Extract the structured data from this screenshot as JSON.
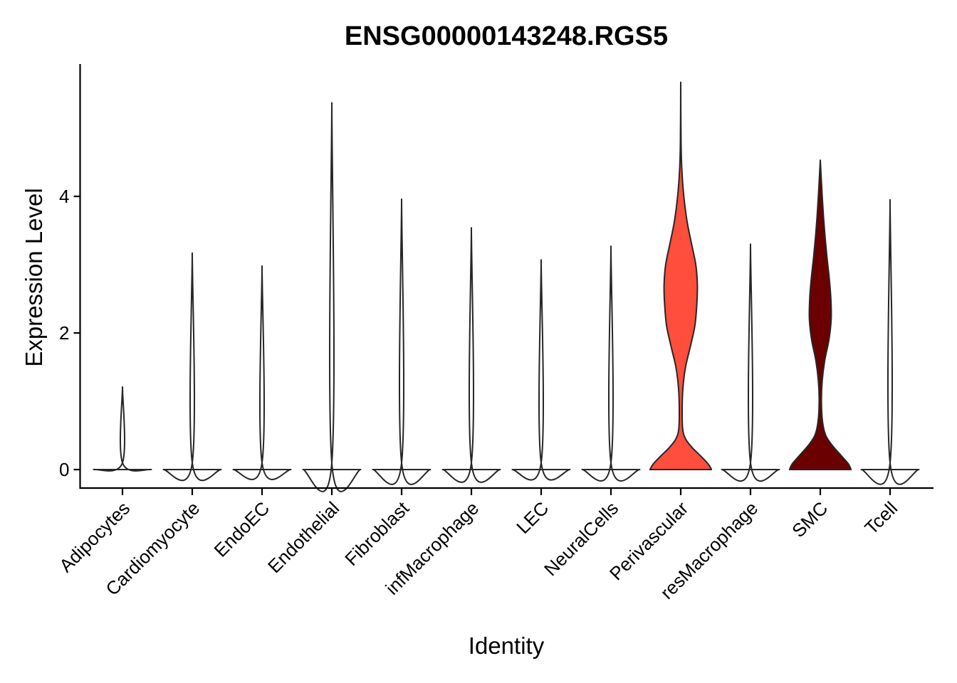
{
  "chart_data": {
    "type": "violin",
    "title": "ENSG00000143248.RGS5",
    "xlabel": "Identity",
    "ylabel": "Expression Level",
    "ylim": [
      -0.28,
      5.9
    ],
    "yticks": [
      0,
      2,
      4
    ],
    "grid": false,
    "legend": "none",
    "categories": [
      "Adipocytes",
      "Cardiomyocyte",
      "EndoEC",
      "Endothelial",
      "Fibroblast",
      "infMacrophage",
      "LEC",
      "NeuralCells",
      "Perivascular",
      "resMacrophage",
      "SMC",
      "Tcell"
    ],
    "series": [
      {
        "category": "Adipocytes",
        "max": 1.21,
        "color": "#ffffff",
        "profile": [
          [
            0,
            0.9
          ],
          [
            0.1,
            0.0
          ],
          [
            1.21,
            0.0
          ]
        ]
      },
      {
        "category": "Cardiomyocyte",
        "max": 3.17,
        "color": "#ffffff",
        "profile": [
          [
            0,
            0.9
          ],
          [
            0.1,
            0.0
          ],
          [
            3.17,
            0.0
          ]
        ]
      },
      {
        "category": "EndoEC",
        "max": 2.98,
        "color": "#ffffff",
        "profile": [
          [
            0,
            0.9
          ],
          [
            0.1,
            0.0
          ],
          [
            2.98,
            0.0
          ]
        ]
      },
      {
        "category": "Endothelial",
        "max": 5.37,
        "color": "#ffffff",
        "profile": [
          [
            0,
            0.9
          ],
          [
            0.1,
            0.0
          ],
          [
            5.37,
            0.0
          ]
        ]
      },
      {
        "category": "Fibroblast",
        "max": 3.96,
        "color": "#ffffff",
        "profile": [
          [
            0,
            0.9
          ],
          [
            0.1,
            0.0
          ],
          [
            3.96,
            0.0
          ]
        ]
      },
      {
        "category": "infMacrophage",
        "max": 3.54,
        "color": "#ffffff",
        "profile": [
          [
            0,
            0.9
          ],
          [
            0.1,
            0.0
          ],
          [
            3.54,
            0.0
          ]
        ]
      },
      {
        "category": "LEC",
        "max": 3.07,
        "color": "#ffffff",
        "profile": [
          [
            0,
            0.9
          ],
          [
            0.1,
            0.0
          ],
          [
            3.07,
            0.0
          ]
        ]
      },
      {
        "category": "NeuralCells",
        "max": 3.27,
        "color": "#ffffff",
        "profile": [
          [
            0,
            0.9
          ],
          [
            0.1,
            0.0
          ],
          [
            3.27,
            0.0
          ]
        ]
      },
      {
        "category": "Perivascular",
        "max": 5.67,
        "color": "#ff4e3c",
        "profile": [
          [
            0,
            0.96
          ],
          [
            0.08,
            0.86
          ],
          [
            0.2,
            0.62
          ],
          [
            0.32,
            0.36
          ],
          [
            0.45,
            0.15
          ],
          [
            0.6,
            0.06
          ],
          [
            0.9,
            0.045
          ],
          [
            1.2,
            0.07
          ],
          [
            1.5,
            0.15
          ],
          [
            1.8,
            0.3
          ],
          [
            2.1,
            0.44
          ],
          [
            2.4,
            0.5
          ],
          [
            2.7,
            0.52
          ],
          [
            3.0,
            0.47
          ],
          [
            3.3,
            0.34
          ],
          [
            3.6,
            0.21
          ],
          [
            3.9,
            0.12
          ],
          [
            4.2,
            0.06
          ],
          [
            4.5,
            0.025
          ],
          [
            4.8,
            0.01
          ],
          [
            5.2,
            0.004
          ],
          [
            5.67,
            0.0
          ]
        ]
      },
      {
        "category": "resMacrophage",
        "max": 3.3,
        "color": "#ffffff",
        "profile": [
          [
            0,
            0.9
          ],
          [
            0.1,
            0.0
          ],
          [
            3.3,
            0.0
          ]
        ]
      },
      {
        "category": "SMC",
        "max": 4.53,
        "color": "#6b0000",
        "profile": [
          [
            0,
            0.96
          ],
          [
            0.08,
            0.88
          ],
          [
            0.2,
            0.66
          ],
          [
            0.35,
            0.38
          ],
          [
            0.5,
            0.17
          ],
          [
            0.7,
            0.07
          ],
          [
            1.0,
            0.035
          ],
          [
            1.3,
            0.06
          ],
          [
            1.6,
            0.14
          ],
          [
            1.9,
            0.27
          ],
          [
            2.2,
            0.34
          ],
          [
            2.5,
            0.33
          ],
          [
            2.8,
            0.28
          ],
          [
            3.1,
            0.21
          ],
          [
            3.4,
            0.15
          ],
          [
            3.7,
            0.1
          ],
          [
            4.0,
            0.06
          ],
          [
            4.3,
            0.025
          ],
          [
            4.53,
            0.0
          ]
        ]
      },
      {
        "category": "Tcell",
        "max": 3.95,
        "color": "#ffffff",
        "profile": [
          [
            0,
            0.9
          ],
          [
            0.1,
            0.0
          ],
          [
            3.95,
            0.0
          ]
        ]
      }
    ]
  }
}
